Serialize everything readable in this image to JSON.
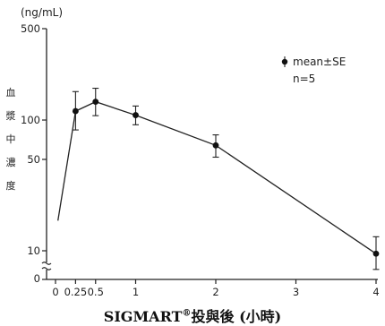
{
  "chart_data": {
    "type": "line",
    "y_unit": "(ng/mL)",
    "ylabel": "血漿中濃度",
    "xlabel": {
      "brand": "SIGMART",
      "mark": "®",
      "rest": "投與後 (小時)"
    },
    "yscale": "log",
    "ylim": [
      5,
      500
    ],
    "xlim": [
      0,
      4
    ],
    "x_ticks": [
      0,
      0.25,
      0.5,
      1,
      2,
      3,
      4
    ],
    "x_tick_labels": [
      "0",
      "0.25",
      "0.5",
      "1",
      "2",
      "3",
      "4"
    ],
    "y_ticks": [
      10,
      50,
      100,
      500
    ],
    "y_tick_labels": [
      "10",
      "50",
      "100",
      "500"
    ],
    "y_zero_label": "0",
    "axis_break": true,
    "legend": {
      "label": "mean±SE",
      "n": "n=5",
      "position": "top-right"
    },
    "series": [
      {
        "points": [
          {
            "x": 0.03,
            "y": 17,
            "marker": false
          },
          {
            "x": 0.25,
            "y": 117,
            "err": [
              84,
              165
            ],
            "marker": true
          },
          {
            "x": 0.5,
            "y": 138,
            "err": [
              108,
              175
            ],
            "marker": true
          },
          {
            "x": 1,
            "y": 109,
            "err": [
              92,
              128
            ],
            "marker": true
          },
          {
            "x": 2,
            "y": 64,
            "err": [
              52,
              77
            ],
            "marker": true
          },
          {
            "x": 4,
            "y": 9.5,
            "err": [
              7.2,
              12.8
            ],
            "marker": true
          }
        ]
      }
    ]
  }
}
